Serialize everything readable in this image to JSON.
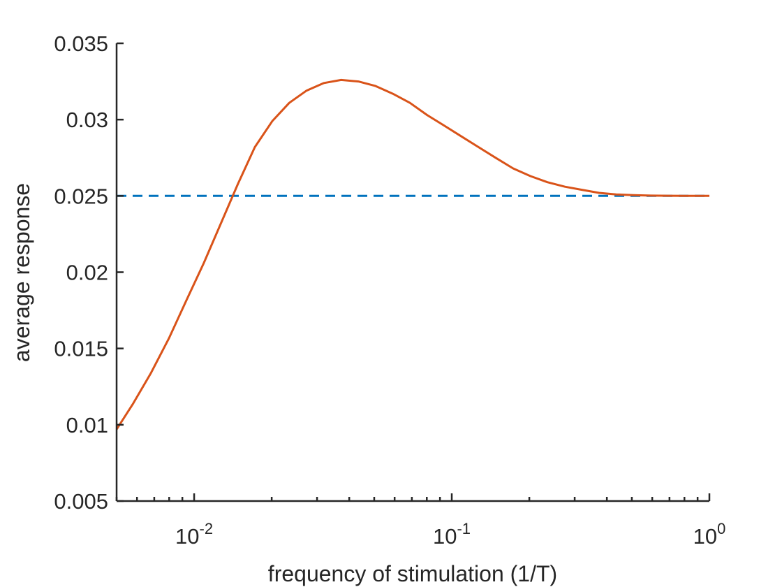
{
  "chart_data": {
    "type": "line",
    "title": "",
    "xlabel": "frequency of stimulation (1/T)",
    "ylabel": "average response",
    "xscale": "log",
    "xlim": [
      0.005,
      1
    ],
    "ylim": [
      0.005,
      0.035
    ],
    "grid": false,
    "legend": "none",
    "x_ticks": [
      {
        "value": 0.01,
        "base": "10",
        "exp": "-2"
      },
      {
        "value": 0.1,
        "base": "10",
        "exp": "-1"
      },
      {
        "value": 1,
        "base": "10",
        "exp": "0"
      }
    ],
    "y_ticks": [
      {
        "value": 0.005,
        "label": "0.005"
      },
      {
        "value": 0.01,
        "label": "0.01"
      },
      {
        "value": 0.015,
        "label": "0.015"
      },
      {
        "value": 0.02,
        "label": "0.02"
      },
      {
        "value": 0.025,
        "label": "0.025"
      },
      {
        "value": 0.03,
        "label": "0.03"
      },
      {
        "value": 0.035,
        "label": "0.035"
      }
    ],
    "series": [
      {
        "style": "dashed",
        "color": "#0072BD",
        "x": [
          0.005,
          1
        ],
        "y": [
          0.025,
          0.025
        ]
      },
      {
        "style": "solid",
        "color": "#D95319",
        "x": [
          0.005,
          0.0058,
          0.0068,
          0.008,
          0.0093,
          0.0109,
          0.0127,
          0.0148,
          0.0172,
          0.0201,
          0.0234,
          0.0273,
          0.0319,
          0.0372,
          0.0434,
          0.0506,
          0.059,
          0.0688,
          0.0802,
          0.0936,
          0.109,
          0.127,
          0.148,
          0.173,
          0.202,
          0.235,
          0.275,
          0.32,
          0.373,
          0.435,
          0.508,
          0.592,
          0.691,
          0.806,
          0.94,
          1.0
        ],
        "y": [
          0.0097,
          0.0114,
          0.0134,
          0.0157,
          0.0181,
          0.0206,
          0.0232,
          0.0258,
          0.0282,
          0.0299,
          0.0311,
          0.0319,
          0.0324,
          0.0326,
          0.0325,
          0.0322,
          0.0317,
          0.0311,
          0.0303,
          0.0296,
          0.0289,
          0.0282,
          0.0275,
          0.0268,
          0.0263,
          0.0259,
          0.0256,
          0.0254,
          0.0252,
          0.0251,
          0.02505,
          0.02502,
          0.02501,
          0.025,
          0.025,
          0.025
        ]
      }
    ]
  }
}
